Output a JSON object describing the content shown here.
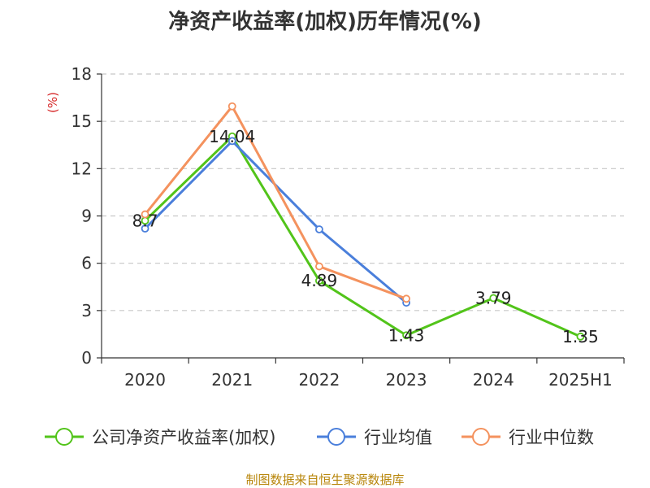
{
  "chart_data": {
    "type": "line",
    "title": "净资产收益率(加权)历年情况(%)",
    "ylabel": "(%)",
    "xlabel": "",
    "categories": [
      "2020",
      "2021",
      "2022",
      "2023",
      "2024",
      "2025H1"
    ],
    "ylim": [
      0,
      18
    ],
    "yticks": [
      0,
      3,
      6,
      9,
      12,
      15,
      18
    ],
    "grid": "horizontal-dashed",
    "legend_position": "bottom",
    "series": [
      {
        "name": "公司净资产收益率(加权)",
        "color": "#52c41a",
        "values": [
          8.7,
          14.04,
          4.89,
          1.43,
          3.79,
          1.35
        ],
        "labels": [
          "8.7",
          "14.04",
          "4.89",
          "1.43",
          "3.79",
          "1.35"
        ]
      },
      {
        "name": "行业均值",
        "color": "#4a7fdb",
        "values": [
          8.2,
          13.75,
          8.15,
          3.5,
          null,
          null
        ]
      },
      {
        "name": "行业中位数",
        "color": "#f4925e",
        "values": [
          9.1,
          15.95,
          5.8,
          3.75,
          null,
          null
        ]
      }
    ]
  },
  "source_text": "制图数据来自恒生聚源数据库"
}
